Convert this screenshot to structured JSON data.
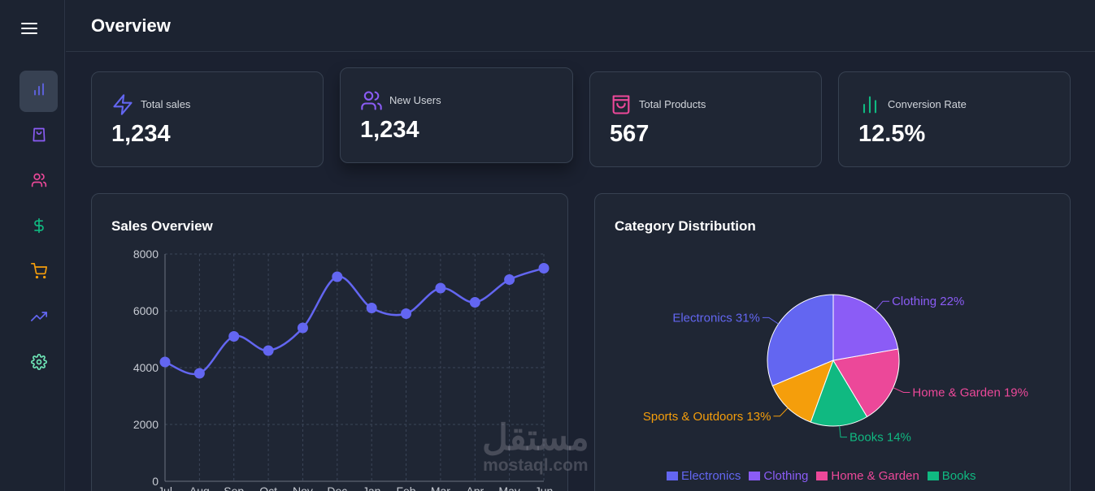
{
  "header": {
    "title": "Overview"
  },
  "sidebar": {
    "items": [
      {
        "icon": "bar-chart-icon",
        "color": "#6366f1",
        "active": true
      },
      {
        "icon": "shopping-bag-icon",
        "color": "#8b5cf6",
        "active": false
      },
      {
        "icon": "users-icon",
        "color": "#ec4899",
        "active": false
      },
      {
        "icon": "dollar-icon",
        "color": "#10b981",
        "active": false
      },
      {
        "icon": "shopping-cart-icon",
        "color": "#f59e0b",
        "active": false
      },
      {
        "icon": "trending-up-icon",
        "color": "#6366f1",
        "active": false
      },
      {
        "icon": "settings-icon",
        "color": "#6ee7b7",
        "active": false
      }
    ]
  },
  "stats": [
    {
      "label": "Total sales",
      "value": "1,234",
      "icon": "zap-icon",
      "color": "#6366f1"
    },
    {
      "label": "New Users",
      "value": "1,234",
      "icon": "users-icon",
      "color": "#8b5cf6"
    },
    {
      "label": "Total Products",
      "value": "567",
      "icon": "shopping-bag-icon",
      "color": "#ec4899"
    },
    {
      "label": "Conversion Rate",
      "value": "12.5%",
      "icon": "bar-chart-icon",
      "color": "#10b981"
    }
  ],
  "sales_panel": {
    "title": "Sales Overview"
  },
  "category_panel": {
    "title": "Category Distribution"
  },
  "watermark": {
    "arabic": "مستقل",
    "latin": "mostaql.com"
  },
  "chart_data": [
    {
      "type": "line",
      "title": "Sales Overview",
      "categories": [
        "Jul",
        "Aug",
        "Sep",
        "Oct",
        "Nov",
        "Dec",
        "Jan",
        "Feb",
        "Mar",
        "Apr",
        "May",
        "Jun"
      ],
      "series": [
        {
          "values": [
            4200,
            3800,
            5100,
            4600,
            5400,
            7200,
            6100,
            5900,
            6800,
            6300,
            7100,
            7500
          ],
          "color": "#6366f1"
        }
      ],
      "yticks": [
        0,
        2000,
        4000,
        6000,
        8000
      ],
      "ylim": [
        0,
        8000
      ],
      "grid": true
    },
    {
      "type": "pie",
      "title": "Category Distribution",
      "slices": [
        {
          "name": "Electronics",
          "value": 31,
          "label": "Electronics 31%",
          "color": "#6366f1"
        },
        {
          "name": "Sports & Outdoors",
          "value": 13,
          "label": "Sports & Outdoors 13%",
          "color": "#f59e0b"
        },
        {
          "name": "Books",
          "value": 14,
          "label": "Books 14%",
          "color": "#10b981"
        },
        {
          "name": "Home & Garden",
          "value": 19,
          "label": "Home & Garden 19%",
          "color": "#ec4899"
        },
        {
          "name": "Clothing",
          "value": 22,
          "label": "Clothing 22%",
          "color": "#8b5cf6"
        }
      ],
      "legend": [
        {
          "name": "Electronics",
          "color": "#6366f1"
        },
        {
          "name": "Clothing",
          "color": "#8b5cf6"
        },
        {
          "name": "Home & Garden",
          "color": "#ec4899"
        },
        {
          "name": "Books",
          "color": "#10b981"
        }
      ],
      "legend_position": "bottom"
    }
  ]
}
